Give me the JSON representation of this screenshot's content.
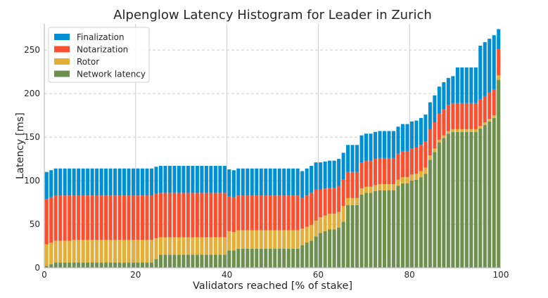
{
  "chart_data": {
    "type": "bar",
    "stacked": true,
    "title": "Alpenglow Latency Histogram for Leader in Zurich",
    "xlabel": "Validators reached [% of stake]",
    "ylabel": "Latency [ms]",
    "xlim": [
      0,
      100
    ],
    "ylim": [
      0,
      280
    ],
    "xticks": [
      0,
      20,
      40,
      60,
      80,
      100
    ],
    "yticks": [
      0,
      50,
      100,
      150,
      200,
      250
    ],
    "grid": true,
    "legend_position": "top-left",
    "x": [
      1,
      2,
      3,
      4,
      5,
      6,
      7,
      8,
      9,
      10,
      11,
      12,
      13,
      14,
      15,
      16,
      17,
      18,
      19,
      20,
      21,
      22,
      23,
      24,
      25,
      26,
      27,
      28,
      29,
      30,
      31,
      32,
      33,
      34,
      35,
      36,
      37,
      38,
      39,
      40,
      41,
      42,
      43,
      44,
      45,
      46,
      47,
      48,
      49,
      50,
      51,
      52,
      53,
      54,
      55,
      56,
      57,
      58,
      59,
      60,
      61,
      62,
      63,
      64,
      65,
      66,
      67,
      68,
      69,
      70,
      71,
      72,
      73,
      74,
      75,
      76,
      77,
      78,
      79,
      80,
      81,
      82,
      83,
      84,
      85,
      86,
      87,
      88,
      89,
      90,
      91,
      92,
      93,
      94,
      95,
      96,
      97,
      98,
      99,
      100
    ],
    "series": [
      {
        "name": "Network latency",
        "color": "#6d904f",
        "values": [
          2,
          4,
          6,
          6,
          6,
          6,
          6,
          6,
          6,
          6,
          6,
          6,
          6,
          6,
          6,
          6,
          6,
          6,
          6,
          6,
          6,
          6,
          6,
          6,
          10,
          15,
          15,
          15,
          15,
          15,
          15,
          15,
          15,
          15,
          15,
          15,
          15,
          15,
          15,
          15,
          20,
          20,
          22,
          22,
          22,
          22,
          22,
          22,
          22,
          22,
          22,
          22,
          22,
          22,
          22,
          22,
          26,
          29,
          31,
          36,
          40,
          42,
          44,
          44,
          46,
          53,
          72,
          72,
          72,
          84,
          86,
          86,
          88,
          89,
          89,
          89,
          89,
          94,
          97,
          97,
          100,
          101,
          104,
          108,
          124,
          133,
          144,
          149,
          154,
          156,
          156,
          156,
          156,
          156,
          156,
          160,
          164,
          168,
          172,
          216
        ]
      },
      {
        "name": "Rotor",
        "color": "#e5ae38",
        "values": [
          25,
          25,
          25,
          25,
          25,
          25,
          26,
          26,
          26,
          26,
          26,
          26,
          26,
          26,
          26,
          26,
          26,
          26,
          26,
          26,
          26,
          26,
          26,
          26,
          24,
          20,
          20,
          20,
          20,
          20,
          20,
          20,
          20,
          20,
          20,
          20,
          20,
          20,
          20,
          20,
          22,
          21,
          21,
          21,
          21,
          21,
          21,
          21,
          21,
          21,
          21,
          21,
          21,
          21,
          21,
          21,
          19,
          18,
          18,
          18,
          18,
          18,
          18,
          18,
          18,
          18,
          8,
          8,
          8,
          7,
          7,
          7,
          7,
          7,
          7,
          7,
          7,
          7,
          7,
          7,
          7,
          7,
          7,
          7,
          5,
          4,
          3,
          3,
          3,
          3,
          3,
          3,
          3,
          3,
          3,
          3,
          3,
          3,
          3,
          5
        ]
      },
      {
        "name": "Notarization",
        "color": "#fc4f30",
        "values": [
          52,
          52,
          52,
          52,
          52,
          52,
          51,
          51,
          51,
          51,
          51,
          51,
          51,
          51,
          51,
          51,
          51,
          51,
          51,
          51,
          51,
          51,
          51,
          51,
          51,
          51,
          51,
          51,
          51,
          51,
          51,
          51,
          51,
          51,
          51,
          51,
          51,
          51,
          51,
          51,
          40,
          40,
          40,
          40,
          40,
          40,
          40,
          40,
          40,
          40,
          40,
          40,
          40,
          40,
          40,
          40,
          35,
          36,
          37,
          36,
          32,
          31,
          30,
          30,
          30,
          30,
          30,
          30,
          30,
          30,
          30,
          30,
          30,
          30,
          30,
          30,
          30,
          30,
          30,
          30,
          30,
          30,
          30,
          30,
          30,
          30,
          30,
          30,
          30,
          30,
          30,
          30,
          30,
          30,
          30,
          30,
          30,
          30,
          30,
          30
        ]
      },
      {
        "name": "Finalization",
        "color": "#008fd5",
        "values": [
          31,
          31,
          31,
          31,
          31,
          31,
          31,
          31,
          31,
          31,
          31,
          31,
          31,
          31,
          31,
          31,
          31,
          31,
          31,
          31,
          31,
          31,
          31,
          31,
          31,
          31,
          31,
          31,
          31,
          31,
          31,
          31,
          31,
          31,
          31,
          31,
          31,
          31,
          31,
          31,
          31,
          31,
          31,
          31,
          31,
          31,
          31,
          31,
          31,
          31,
          31,
          31,
          31,
          31,
          31,
          31,
          31,
          31,
          31,
          31,
          31,
          31,
          31,
          31,
          31,
          31,
          31,
          31,
          31,
          31,
          31,
          31,
          31,
          31,
          31,
          31,
          31,
          31,
          31,
          31,
          31,
          31,
          31,
          31,
          31,
          31,
          31,
          31,
          31,
          31,
          41,
          41,
          41,
          41,
          41,
          62,
          62,
          62,
          62,
          23
        ]
      }
    ]
  }
}
